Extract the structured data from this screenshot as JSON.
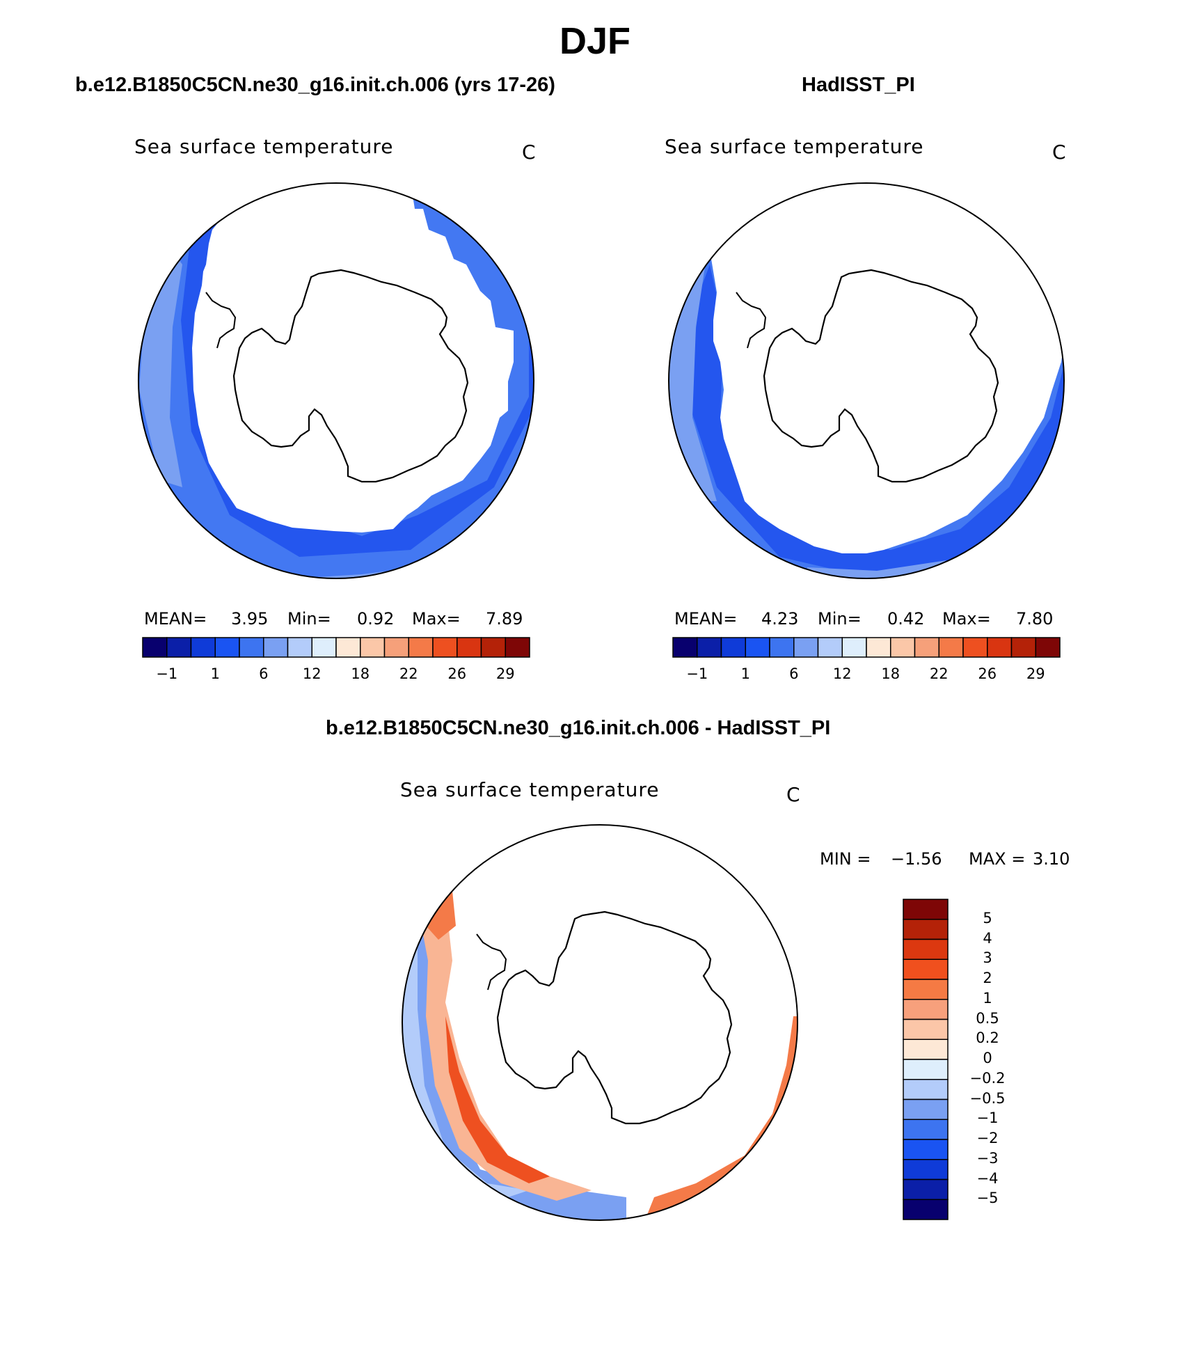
{
  "title": "DJF",
  "panels": [
    {
      "case": "b.e12.B1850C5CN.ne30_g16.init.ch.006 (yrs 17-26)",
      "variable": "Sea surface temperature",
      "units": "C",
      "stats": {
        "mean_label": "MEAN=",
        "mean": "3.95",
        "min_label": "Min=",
        "min": "0.92",
        "max_label": "Max=",
        "max": "7.89"
      }
    },
    {
      "case": "HadISST_PI",
      "variable": "Sea surface temperature",
      "units": "C",
      "stats": {
        "mean_label": "MEAN=",
        "mean": "4.23",
        "min_label": "Min=",
        "min": "0.42",
        "max_label": "Max=",
        "max": "7.80"
      }
    },
    {
      "case": "b.e12.B1850C5CN.ne30_g16.init.ch.006 - HadISST_PI",
      "variable": "Sea surface temperature",
      "units": "C",
      "stats": {
        "min_label": "MIN =",
        "min": "−1.56",
        "max_label": "MAX =",
        "max": "3.10"
      }
    }
  ],
  "sst_colorbar": {
    "labels": [
      "−1",
      "1",
      "6",
      "12",
      "18",
      "22",
      "26",
      "29"
    ],
    "colors": [
      "#08006e",
      "#0b1fa8",
      "#0f3bd8",
      "#1a54f2",
      "#3d74f0",
      "#7aa0f2",
      "#b3ccfa",
      "#deeefc",
      "#fde8d6",
      "#fbc7a8",
      "#f6a07a",
      "#f47a48",
      "#ee5020",
      "#d93511",
      "#b42208",
      "#7e0606"
    ]
  },
  "diff_colorbar": {
    "labels": [
      "5",
      "4",
      "3",
      "2",
      "1",
      "0.5",
      "0.2",
      "0",
      "−0.2",
      "−0.5",
      "−1",
      "−2",
      "−3",
      "−4",
      "−5"
    ],
    "colors": [
      "#7e0606",
      "#b42208",
      "#dc3810",
      "#f0501e",
      "#f57a44",
      "#f7a07c",
      "#fbc6a8",
      "#fde8d6",
      "#deeefc",
      "#b3ccfa",
      "#7aa0f2",
      "#3d74f0",
      "#1a54f2",
      "#0f3bd8",
      "#0b1fa8",
      "#08006e"
    ]
  },
  "map_colors": {
    "dark_band": "#2456ee",
    "mid_band": "#4378f2",
    "light_band": "#7aa0f2",
    "warm_1": "#f47a48",
    "warm_2": "#ee5020",
    "warm_light": "#f9b594",
    "cool_light": "#b3ccfa"
  }
}
